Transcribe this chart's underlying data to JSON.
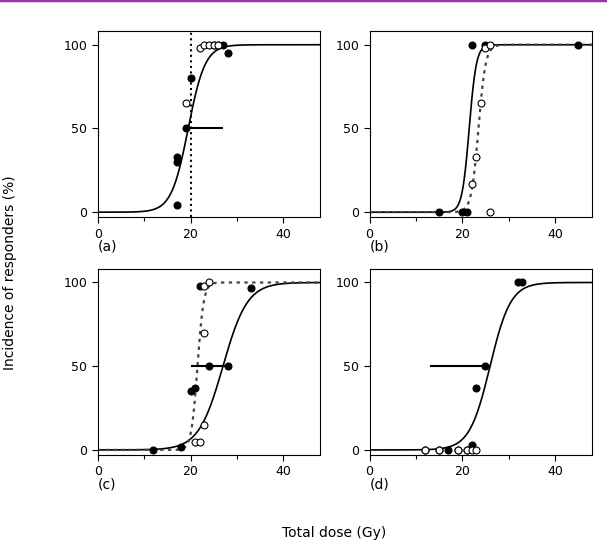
{
  "figsize": [
    6.07,
    5.45
  ],
  "dpi": 100,
  "ylabel": "Incidence of responders (%)",
  "xlabel": "Total dose (Gy)",
  "panels": [
    "(a)",
    "(b)",
    "(c)",
    "(d)"
  ],
  "xlim": [
    0,
    48
  ],
  "ylim": [
    -3,
    108
  ],
  "xticks": [
    0,
    20,
    40
  ],
  "yticks": [
    0,
    50,
    100
  ],
  "panel_a": {
    "filled_dots": [
      [
        17,
        4
      ],
      [
        17,
        30
      ],
      [
        17,
        33
      ],
      [
        19,
        50
      ],
      [
        20,
        80
      ],
      [
        25,
        100
      ],
      [
        26,
        100
      ],
      [
        27,
        100
      ],
      [
        28,
        95
      ]
    ],
    "open_dots": [
      [
        19,
        65
      ],
      [
        22,
        98
      ],
      [
        23,
        100
      ],
      [
        24,
        100
      ],
      [
        25,
        100
      ],
      [
        26,
        100
      ]
    ],
    "solid_curve": {
      "x0": 19.5,
      "k": 0.55
    },
    "vertical_dotted_x": 20,
    "horizontal_line": {
      "y": 50,
      "x_start": 19,
      "x_end": 27
    },
    "show_dotted_curve": false,
    "show_vertical_dotted": true,
    "y50_left_tick": true
  },
  "panel_b": {
    "filled_dots": [
      [
        15,
        0
      ],
      [
        20,
        0
      ],
      [
        21,
        0
      ],
      [
        22,
        100
      ],
      [
        25,
        100
      ],
      [
        45,
        100
      ]
    ],
    "open_dots": [
      [
        26,
        0
      ],
      [
        22,
        17
      ],
      [
        23,
        33
      ],
      [
        24,
        65
      ],
      [
        25,
        98
      ],
      [
        26,
        100
      ]
    ],
    "solid_curve": {
      "x0": 21.5,
      "k": 1.3
    },
    "dotted_curve": {
      "x0": 23.5,
      "k": 1.3
    },
    "show_dotted_curve": true,
    "show_vertical_dotted": false,
    "y50_left_tick": false
  },
  "panel_c": {
    "filled_dots": [
      [
        12,
        0
      ],
      [
        18,
        2
      ],
      [
        20,
        35
      ],
      [
        21,
        37
      ],
      [
        22,
        98
      ],
      [
        24,
        50
      ],
      [
        28,
        50
      ],
      [
        33,
        97
      ]
    ],
    "open_dots": [
      [
        21,
        5
      ],
      [
        22,
        5
      ],
      [
        23,
        15
      ],
      [
        23,
        70
      ],
      [
        23,
        98
      ],
      [
        24,
        100
      ]
    ],
    "solid_curve": {
      "x0": 27,
      "k": 0.38
    },
    "dotted_curve": {
      "x0": 21.5,
      "k": 1.5
    },
    "show_dotted_curve": true,
    "show_vertical_dotted": false,
    "horizontal_line": {
      "y": 50,
      "x_start": 20,
      "x_end": 29
    },
    "y50_left_tick": true
  },
  "panel_d": {
    "filled_dots": [
      [
        12,
        0
      ],
      [
        15,
        0
      ],
      [
        17,
        0
      ],
      [
        19,
        0
      ],
      [
        21,
        0
      ],
      [
        22,
        3
      ],
      [
        23,
        37
      ],
      [
        25,
        50
      ],
      [
        32,
        100
      ],
      [
        33,
        100
      ]
    ],
    "open_dots": [
      [
        12,
        0
      ],
      [
        15,
        0
      ],
      [
        19,
        0
      ],
      [
        21,
        0
      ],
      [
        22,
        0
      ],
      [
        23,
        0
      ]
    ],
    "solid_curve": {
      "x0": 26,
      "k": 0.45
    },
    "show_dotted_curve": false,
    "show_vertical_dotted": false,
    "horizontal_line": {
      "y": 50,
      "x_start": 13,
      "x_end": 26
    },
    "y50_left_tick": false
  },
  "colors": {
    "filled": "#000000",
    "open": "#000000",
    "solid_line": "#000000",
    "dotted_line": "#444444",
    "top_border": "#9933aa"
  }
}
